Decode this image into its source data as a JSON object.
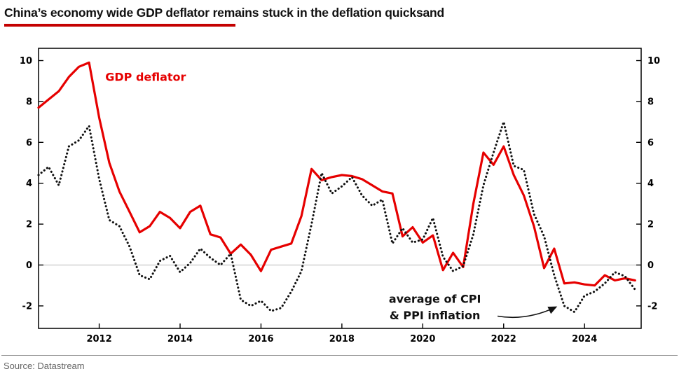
{
  "header": {
    "title": "China’s economy wide GDP deflator remains stuck in the deflation quicksand"
  },
  "footer": {
    "source": "Source: Datastream"
  },
  "colors": {
    "accent_bar": "#c40000",
    "line_red": "#e60000",
    "line_black": "#111111",
    "zero_line": "#b7b7b7",
    "axis": "#000000"
  },
  "chart_data": {
    "type": "line",
    "title": "China’s economy wide GDP deflator remains stuck in the deflation quicksand",
    "xlabel": "",
    "ylabel": "",
    "xlim": [
      2010.5,
      2025.4
    ],
    "ylim": [
      -3.1,
      10.6
    ],
    "grid": "zero-line-only",
    "legend_position": "inline-annotations",
    "x_ticks": [
      2012,
      2014,
      2016,
      2018,
      2020,
      2022,
      2024
    ],
    "y_ticks": [
      -2,
      0,
      2,
      4,
      6,
      8,
      10
    ],
    "x": [
      2010.5,
      2010.75,
      2011,
      2011.25,
      2011.5,
      2011.75,
      2012,
      2012.25,
      2012.5,
      2012.75,
      2013,
      2013.25,
      2013.5,
      2013.75,
      2014,
      2014.25,
      2014.5,
      2014.75,
      2015,
      2015.25,
      2015.5,
      2015.75,
      2016,
      2016.25,
      2016.5,
      2016.75,
      2017,
      2017.25,
      2017.5,
      2017.75,
      2018,
      2018.25,
      2018.5,
      2018.75,
      2019,
      2019.25,
      2019.5,
      2019.75,
      2020,
      2020.25,
      2020.5,
      2020.75,
      2021,
      2021.25,
      2021.5,
      2021.75,
      2022,
      2022.25,
      2022.5,
      2022.75,
      2023,
      2023.25,
      2023.5,
      2023.75,
      2024,
      2024.25,
      2024.5,
      2024.75,
      2025,
      2025.25
    ],
    "series": [
      {
        "id": "gdp-deflator-line",
        "name": "GDP deflator",
        "color": "#e60000",
        "style": "solid",
        "width": 3.2,
        "values": [
          7.7,
          8.1,
          8.5,
          9.2,
          9.7,
          9.9,
          7.2,
          5.0,
          3.6,
          2.6,
          1.6,
          1.9,
          2.6,
          2.3,
          1.8,
          2.6,
          2.9,
          1.5,
          1.35,
          0.55,
          1.0,
          0.5,
          -0.3,
          0.75,
          0.9,
          1.05,
          2.4,
          4.7,
          4.15,
          4.3,
          4.4,
          4.35,
          4.2,
          3.9,
          3.6,
          3.5,
          1.4,
          1.85,
          1.1,
          1.45,
          -0.25,
          0.6,
          -0.1,
          3.0,
          5.5,
          4.9,
          5.8,
          4.4,
          3.4,
          1.9,
          -0.15,
          0.8,
          -0.9,
          -0.85,
          -0.95,
          -1.0,
          -0.5,
          -0.75,
          -0.65,
          -0.75
        ]
      },
      {
        "id": "cpi-ppi-average-line",
        "name": "average of CPI & PPI inflation",
        "color": "#111111",
        "style": "dotted",
        "width": 3.1,
        "values": [
          4.4,
          4.8,
          3.9,
          5.8,
          6.1,
          6.8,
          4.2,
          2.2,
          1.9,
          0.9,
          -0.5,
          -0.7,
          0.2,
          0.45,
          -0.35,
          0.1,
          0.8,
          0.35,
          0.0,
          0.55,
          -1.7,
          -2.0,
          -1.75,
          -2.25,
          -2.1,
          -1.3,
          -0.3,
          2.0,
          4.5,
          3.5,
          3.85,
          4.3,
          3.4,
          2.9,
          3.2,
          1.05,
          1.8,
          1.1,
          1.25,
          2.3,
          0.4,
          -0.3,
          -0.05,
          1.5,
          3.9,
          5.5,
          7.0,
          4.85,
          4.65,
          2.5,
          1.4,
          -0.5,
          -2.0,
          -2.3,
          -1.5,
          -1.3,
          -0.9,
          -0.35,
          -0.55,
          -1.2
        ]
      }
    ],
    "labels": [
      {
        "name": "gdp-deflator-label",
        "text": "GDP deflator",
        "x": 2012.15,
        "y": 9.0,
        "color": "#e60000",
        "anchor": "start",
        "font_size": 16
      },
      {
        "name": "cpi-ppi-label-line1",
        "text": "average of CPI",
        "x": 2020.3,
        "y": -1.85,
        "color": "#111111",
        "anchor": "middle",
        "font_size": 16
      },
      {
        "name": "cpi-ppi-label-line2",
        "text": "& PPI inflation",
        "x": 2020.3,
        "y": -2.65,
        "color": "#111111",
        "anchor": "middle",
        "font_size": 16
      }
    ],
    "arrow": {
      "from": [
        2021.85,
        -2.5
      ],
      "to": [
        2023.3,
        -2.05
      ]
    }
  }
}
